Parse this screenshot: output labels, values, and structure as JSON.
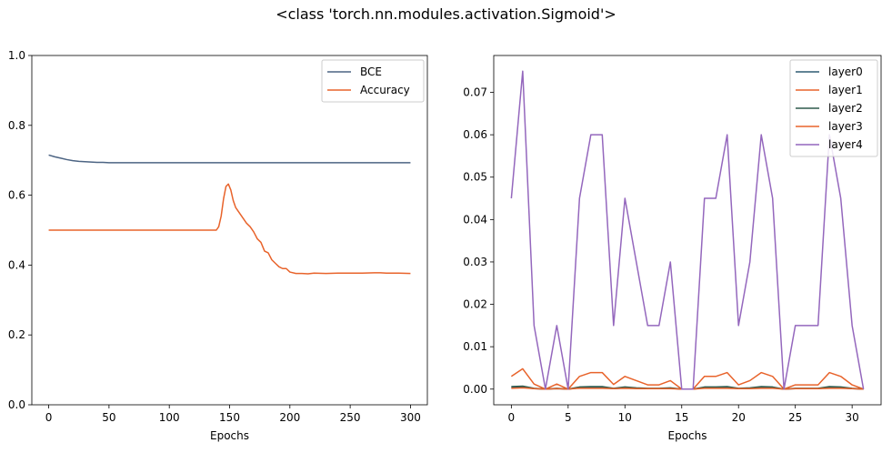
{
  "figure": {
    "suptitle": "<class 'torch.nn.modules.activation.Sigmoid'>"
  },
  "chart_data": [
    {
      "type": "line",
      "title": "",
      "xlabel": "Epochs",
      "ylabel": "",
      "xlim": [
        -14,
        314
      ],
      "ylim": [
        0,
        1
      ],
      "xticks": [
        0,
        50,
        100,
        150,
        200,
        250,
        300
      ],
      "yticks": [
        0.0,
        0.2,
        0.4,
        0.6,
        0.8,
        1.0
      ],
      "ytick_decimals": 1,
      "grid": false,
      "legend": "top-right",
      "series": [
        {
          "name": "BCE",
          "color": "#4c6483",
          "x": [
            0,
            5,
            10,
            15,
            20,
            25,
            30,
            35,
            40,
            45,
            50,
            60,
            70,
            80,
            100,
            150,
            200,
            250,
            300
          ],
          "y": [
            0.715,
            0.71,
            0.706,
            0.702,
            0.699,
            0.697,
            0.696,
            0.695,
            0.694,
            0.694,
            0.693,
            0.693,
            0.693,
            0.693,
            0.693,
            0.693,
            0.693,
            0.693,
            0.693
          ]
        },
        {
          "name": "Accuracy",
          "color": "#e8632b",
          "x": [
            0,
            50,
            100,
            139,
            141,
            143,
            145,
            147,
            149,
            151,
            153,
            155,
            158,
            161,
            164,
            167,
            170,
            173,
            176,
            179,
            182,
            185,
            188,
            191,
            194,
            197,
            200,
            205,
            210,
            215,
            220,
            230,
            240,
            250,
            260,
            270,
            275,
            280,
            290,
            300
          ],
          "y": [
            0.5,
            0.5,
            0.5,
            0.5,
            0.51,
            0.54,
            0.59,
            0.625,
            0.632,
            0.615,
            0.585,
            0.565,
            0.55,
            0.535,
            0.52,
            0.51,
            0.495,
            0.475,
            0.465,
            0.44,
            0.435,
            0.415,
            0.405,
            0.395,
            0.39,
            0.39,
            0.38,
            0.376,
            0.376,
            0.375,
            0.377,
            0.376,
            0.377,
            0.377,
            0.377,
            0.378,
            0.378,
            0.377,
            0.377,
            0.376
          ]
        }
      ]
    },
    {
      "type": "line",
      "title": "",
      "xlabel": "Epochs",
      "ylabel": "",
      "xlim": [
        -1.55,
        32.55
      ],
      "ylim": [
        -0.0037,
        0.0787
      ],
      "xticks": [
        0,
        5,
        10,
        15,
        20,
        25,
        30
      ],
      "yticks": [
        0.0,
        0.01,
        0.02,
        0.03,
        0.04,
        0.05,
        0.06,
        0.07
      ],
      "ytick_decimals": 2,
      "grid": false,
      "legend": "top-right",
      "x": [
        0,
        1,
        2,
        3,
        4,
        5,
        6,
        7,
        8,
        9,
        10,
        11,
        12,
        13,
        14,
        15,
        16,
        17,
        18,
        19,
        20,
        21,
        22,
        23,
        24,
        25,
        26,
        27,
        28,
        29,
        30,
        31
      ],
      "series": [
        {
          "name": "layer0",
          "color": "#2f5b72",
          "y": [
            0.0004,
            0.0005,
            0.0001,
            0.0,
            0.0001,
            0.0,
            0.0003,
            0.0004,
            0.0004,
            0.0001,
            0.0003,
            0.0002,
            0.0001,
            0.0001,
            0.0002,
            0.0,
            0.0,
            0.0003,
            0.0003,
            0.0004,
            0.0001,
            0.0002,
            0.0004,
            0.0003,
            0.0,
            0.0001,
            0.0001,
            0.0001,
            0.0004,
            0.0003,
            0.0001,
            0.0
          ]
        },
        {
          "name": "layer1",
          "color": "#e8632b",
          "y": [
            0.003,
            0.0048,
            0.0012,
            0.0,
            0.0012,
            0.0,
            0.003,
            0.0039,
            0.0039,
            0.0011,
            0.003,
            0.002,
            0.001,
            0.001,
            0.002,
            0.0,
            0.0,
            0.003,
            0.003,
            0.0039,
            0.001,
            0.002,
            0.0039,
            0.003,
            0.0,
            0.001,
            0.001,
            0.001,
            0.0039,
            0.003,
            0.001,
            0.0
          ]
        },
        {
          "name": "layer2",
          "color": "#2e5a4b",
          "y": [
            0.0006,
            0.0007,
            0.0002,
            0.0,
            0.0002,
            0.0,
            0.0005,
            0.0006,
            0.0006,
            0.0002,
            0.0005,
            0.0003,
            0.0002,
            0.0002,
            0.0003,
            0.0,
            0.0,
            0.0005,
            0.0005,
            0.0006,
            0.0002,
            0.0003,
            0.0006,
            0.0005,
            0.0,
            0.0002,
            0.0002,
            0.0002,
            0.0006,
            0.0005,
            0.0002,
            0.0
          ]
        },
        {
          "name": "layer3",
          "color": "#e8632b",
          "y": [
            0.0002,
            0.0003,
            0.0001,
            0.0,
            0.0001,
            0.0,
            0.0002,
            0.0002,
            0.0002,
            0.0001,
            0.0002,
            0.0001,
            0.0001,
            0.0001,
            0.0001,
            0.0,
            0.0,
            0.0002,
            0.0002,
            0.0002,
            0.0001,
            0.0001,
            0.0002,
            0.0002,
            0.0,
            0.0001,
            0.0001,
            0.0001,
            0.0002,
            0.0002,
            0.0001,
            0.0
          ]
        },
        {
          "name": "layer4",
          "color": "#9467bd",
          "y": [
            0.045,
            0.075,
            0.015,
            0.0,
            0.015,
            0.0,
            0.045,
            0.06,
            0.06,
            0.015,
            0.045,
            0.03,
            0.015,
            0.015,
            0.03,
            0.0,
            0.0,
            0.045,
            0.045,
            0.06,
            0.015,
            0.03,
            0.06,
            0.045,
            0.0,
            0.015,
            0.015,
            0.015,
            0.06,
            0.045,
            0.015,
            0.0
          ]
        }
      ]
    }
  ]
}
